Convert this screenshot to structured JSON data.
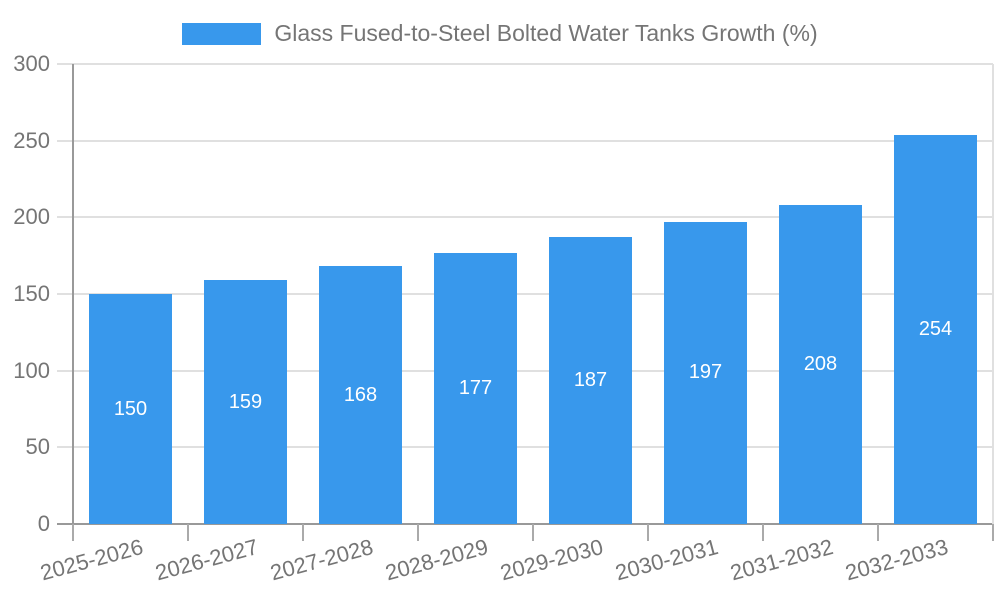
{
  "legend": {
    "label": "Glass Fused-to-Steel Bolted Water Tanks Growth (%)"
  },
  "colors": {
    "bar": "#3898ec",
    "grid": "#e0e0e0",
    "axis": "#999999",
    "tick_text": "#757575",
    "value_text": "#ffffff"
  },
  "chart_data": {
    "type": "bar",
    "title": "Glass Fused-to-Steel Bolted Water Tanks Growth (%)",
    "categories": [
      "2025-2026",
      "2026-2027",
      "2027-2028",
      "2028-2029",
      "2029-2030",
      "2030-2031",
      "2031-2032",
      "2032-2033"
    ],
    "values": [
      150,
      159,
      168,
      177,
      187,
      197,
      208,
      254
    ],
    "xlabel": "",
    "ylabel": "",
    "ylim": [
      0,
      300
    ],
    "yticks": [
      0,
      50,
      100,
      150,
      200,
      250,
      300
    ],
    "grid": true,
    "legend_position": "top",
    "value_labels": "inside-center"
  }
}
